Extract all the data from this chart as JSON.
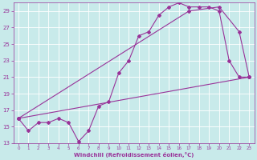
{
  "xlabel": "Windchill (Refroidissement éolien,°C)",
  "xlim": [
    -0.5,
    23.5
  ],
  "ylim": [
    13,
    30
  ],
  "xticks": [
    0,
    1,
    2,
    3,
    4,
    5,
    6,
    7,
    8,
    9,
    10,
    11,
    12,
    13,
    14,
    15,
    16,
    17,
    18,
    19,
    20,
    21,
    22,
    23
  ],
  "yticks": [
    13,
    15,
    17,
    19,
    21,
    23,
    25,
    27,
    29
  ],
  "bg_color": "#c8eaea",
  "grid_color": "#ffffff",
  "line_color": "#993399",
  "line1_x": [
    0,
    1,
    2,
    3,
    4,
    5,
    6,
    7,
    8,
    9,
    10,
    11,
    12,
    13,
    14,
    15,
    16,
    17,
    18,
    19,
    20,
    21,
    22,
    23
  ],
  "line1_y": [
    16.0,
    14.5,
    15.5,
    15.5,
    16.0,
    15.5,
    13.2,
    14.5,
    17.5,
    18.0,
    21.5,
    23.0,
    26.0,
    26.5,
    28.5,
    29.5,
    30.0,
    29.5,
    29.5,
    29.5,
    29.0,
    23.0,
    21.0,
    21.0
  ],
  "line2_x": [
    0,
    23
  ],
  "line2_y": [
    16.0,
    21.0
  ],
  "line3_x": [
    0,
    17,
    20,
    22,
    23
  ],
  "line3_y": [
    16.0,
    29.0,
    29.5,
    26.5,
    21.0
  ]
}
